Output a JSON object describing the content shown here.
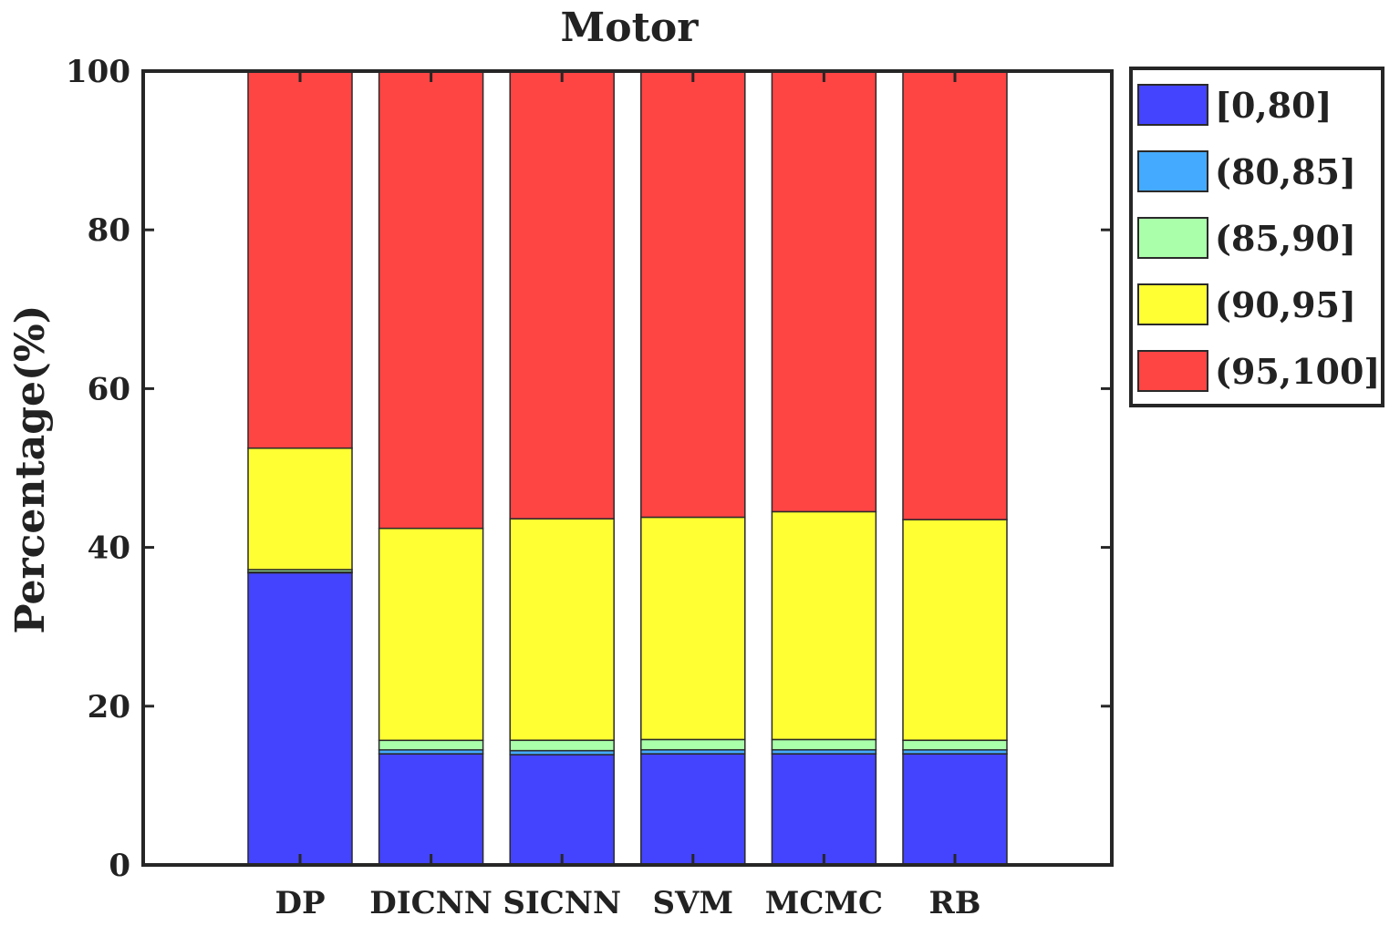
{
  "chart_data": {
    "type": "bar",
    "stacked": true,
    "title": "Motor",
    "xlabel": "",
    "ylabel": "Percentage(%)",
    "ylim": [
      0,
      100
    ],
    "yticks": [
      0,
      20,
      40,
      60,
      80,
      100
    ],
    "grid": false,
    "legend_position": "right-top",
    "categories": [
      "DP",
      "DICNN",
      "SICNN",
      "SVM",
      "MCMC",
      "RB"
    ],
    "series": [
      {
        "name": "[0,80]",
        "color": "#4444ff",
        "values": [
          36.8,
          14.0,
          13.9,
          14.0,
          14.0,
          14.0
        ]
      },
      {
        "name": "(80,85]",
        "color": "#44aaff",
        "values": [
          0.1,
          0.5,
          0.5,
          0.5,
          0.5,
          0.5
        ]
      },
      {
        "name": "(85,90]",
        "color": "#aaffaa",
        "values": [
          0.3,
          1.2,
          1.3,
          1.3,
          1.3,
          1.2
        ]
      },
      {
        "name": "(90,95]",
        "color": "#ffff33",
        "values": [
          15.3,
          26.7,
          27.9,
          28.0,
          28.7,
          27.8
        ]
      },
      {
        "name": "(95,100]",
        "color": "#ff4444",
        "values": [
          47.5,
          57.6,
          56.4,
          56.2,
          55.5,
          56.5
        ]
      }
    ]
  }
}
